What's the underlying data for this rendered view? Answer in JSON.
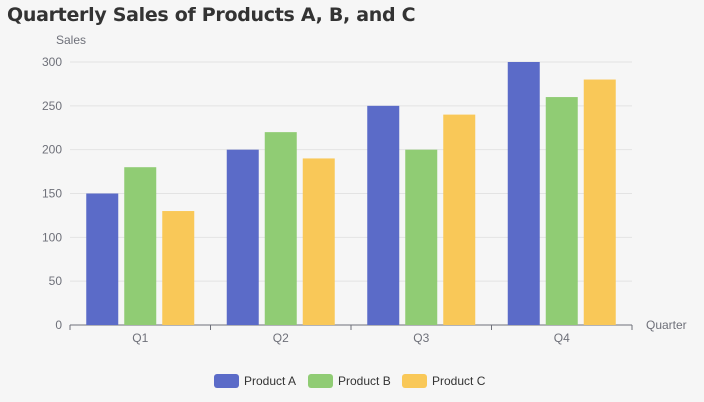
{
  "chart_data": {
    "type": "bar",
    "title": "Quarterly Sales of Products A, B, and C",
    "xlabel": "Quarter",
    "ylabel": "Sales",
    "categories": [
      "Q1",
      "Q2",
      "Q3",
      "Q4"
    ],
    "ylim": [
      0,
      300
    ],
    "yticks": [
      0,
      50,
      100,
      150,
      200,
      250,
      300
    ],
    "grid": true,
    "legend_position": "bottom",
    "series": [
      {
        "name": "Product A",
        "color": "#5b6bc8",
        "values": [
          150,
          200,
          250,
          300
        ]
      },
      {
        "name": "Product B",
        "color": "#90cc74",
        "values": [
          180,
          220,
          200,
          260
        ]
      },
      {
        "name": "Product C",
        "color": "#f9c858",
        "values": [
          130,
          190,
          240,
          280
        ]
      }
    ]
  }
}
